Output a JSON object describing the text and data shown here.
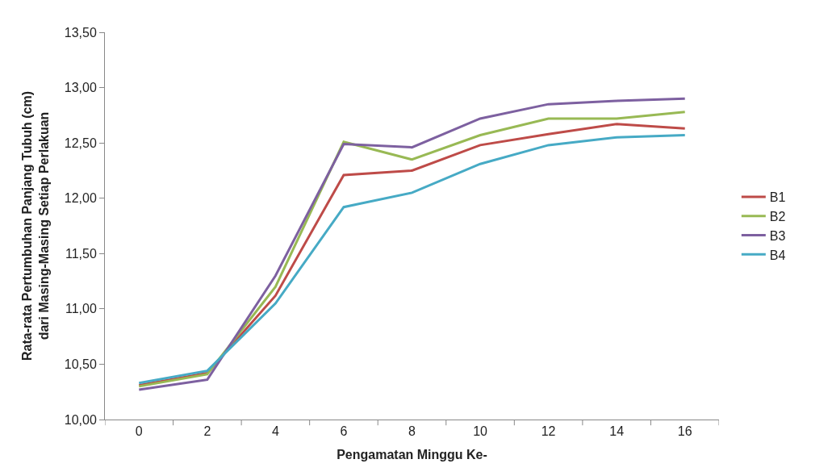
{
  "chart_data": {
    "type": "line",
    "xlabel": "Pengamatan Minggu Ke-",
    "ylabel": "Rata-rata Pertumbuhan Panjang Tubuh (cm)\ndari Masing-Masing Setiap Perlakuan",
    "categories": [
      "0",
      "2",
      "4",
      "6",
      "8",
      "10",
      "12",
      "14",
      "16"
    ],
    "series": [
      {
        "name": "B1",
        "color": "#be4b48",
        "values": [
          10.31,
          10.42,
          11.12,
          12.21,
          12.25,
          12.48,
          12.58,
          12.67,
          12.63
        ]
      },
      {
        "name": "B2",
        "color": "#98b954",
        "values": [
          10.3,
          10.41,
          11.2,
          12.51,
          12.35,
          12.57,
          12.72,
          12.72,
          12.78
        ]
      },
      {
        "name": "B3",
        "color": "#7d60a0",
        "values": [
          10.27,
          10.36,
          11.3,
          12.49,
          12.46,
          12.72,
          12.85,
          12.88,
          12.9
        ]
      },
      {
        "name": "B4",
        "color": "#46aac5",
        "values": [
          10.33,
          10.44,
          11.05,
          11.92,
          12.05,
          12.31,
          12.48,
          12.55,
          12.57
        ]
      }
    ],
    "ylim": [
      10,
      13.5
    ],
    "yticks": [
      {
        "value": 10,
        "label": "10,00"
      },
      {
        "value": 10.5,
        "label": "10,50"
      },
      {
        "value": 11,
        "label": "11,00"
      },
      {
        "value": 11.5,
        "label": "11,50"
      },
      {
        "value": 12,
        "label": "12,00"
      },
      {
        "value": 12.5,
        "label": "12,50"
      },
      {
        "value": 13,
        "label": "13,00"
      },
      {
        "value": 13.5,
        "label": "13,50"
      }
    ],
    "legend": "right",
    "marker": "none",
    "line_style": "solid"
  }
}
